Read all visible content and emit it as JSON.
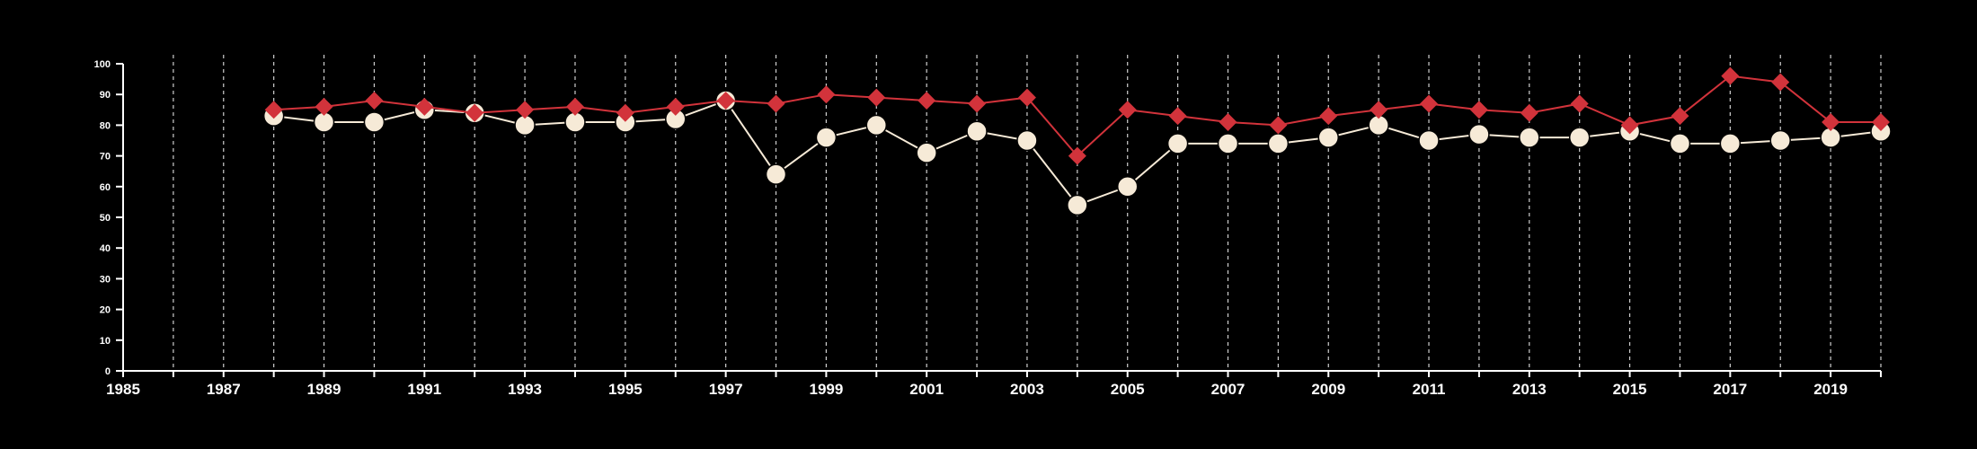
{
  "chart_data": {
    "type": "line",
    "title": "",
    "xlabel": "",
    "ylabel": "",
    "xlim": [
      1985,
      2020
    ],
    "ylim": [
      0,
      100
    ],
    "x_tick_labels": [
      "1985",
      "1987",
      "1989",
      "1991",
      "1993",
      "1995",
      "1997",
      "1999",
      "2001",
      "2003",
      "2005",
      "2007",
      "2009",
      "2011",
      "2013",
      "2015",
      "2017",
      "2019"
    ],
    "y_tick_labels": [
      "0",
      "10",
      "20",
      "30",
      "40",
      "50",
      "60",
      "70",
      "80",
      "90",
      "100"
    ],
    "grid": "vertical dashed at each year",
    "legend": "none",
    "background": "#000000",
    "axis_color": "#ffffff",
    "series": [
      {
        "marker": "diamond",
        "color": "#d2333b",
        "x": [
          1988,
          1989,
          1990,
          1991,
          1992,
          1993,
          1994,
          1995,
          1996,
          1997,
          1998,
          1999,
          2000,
          2001,
          2002,
          2003,
          2004,
          2005,
          2006,
          2007,
          2008,
          2009,
          2010,
          2011,
          2012,
          2013,
          2014,
          2015,
          2016,
          2017,
          2018,
          2019,
          2020
        ],
        "values": [
          85,
          86,
          88,
          86,
          84,
          85,
          86,
          84,
          86,
          88,
          87,
          90,
          89,
          88,
          87,
          89,
          70,
          85,
          83,
          81,
          80,
          83,
          85,
          87,
          85,
          84,
          87,
          80,
          83,
          96,
          94,
          81,
          81
        ]
      },
      {
        "marker": "circle",
        "color": "#f6ead7",
        "x": [
          1988,
          1989,
          1990,
          1991,
          1992,
          1993,
          1994,
          1995,
          1996,
          1997,
          1998,
          1999,
          2000,
          2001,
          2002,
          2003,
          2004,
          2005,
          2006,
          2007,
          2008,
          2009,
          2010,
          2011,
          2012,
          2013,
          2014,
          2015,
          2016,
          2017,
          2018,
          2019,
          2020
        ],
        "values": [
          83,
          81,
          81,
          85,
          84,
          80,
          81,
          81,
          82,
          88,
          64,
          76,
          80,
          71,
          78,
          75,
          54,
          60,
          74,
          74,
          74,
          76,
          80,
          75,
          77,
          76,
          76,
          78,
          74,
          74,
          75,
          76,
          78
        ]
      }
    ]
  }
}
